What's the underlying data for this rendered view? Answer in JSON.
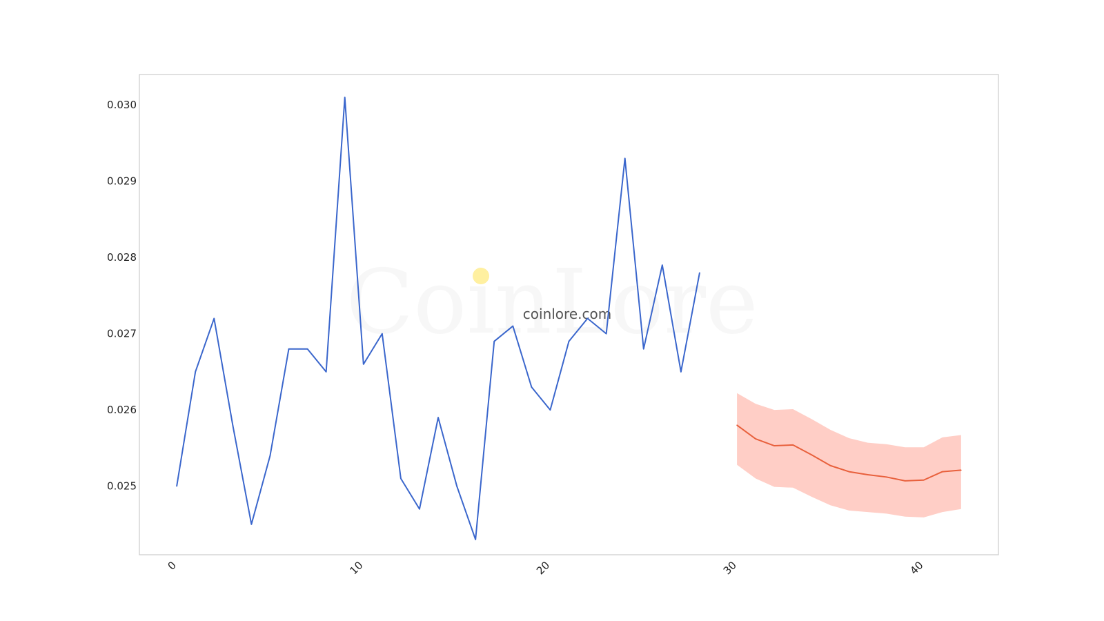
{
  "watermark": {
    "logo_text": "CoinLore",
    "site_text": "coinlore.com",
    "dot_color": "#fff0a0"
  },
  "chart_data": {
    "type": "line",
    "title": "",
    "xlabel": "",
    "ylabel": "",
    "xlim": [
      -2,
      44
    ],
    "ylim": [
      0.0241,
      0.0304
    ],
    "grid": false,
    "x_ticks": [
      0,
      10,
      20,
      30,
      40
    ],
    "y_ticks": [
      0.025,
      0.026,
      0.027,
      0.028,
      0.029,
      0.03
    ],
    "y_tick_labels": [
      "0.025",
      "0.026",
      "0.027",
      "0.028",
      "0.029",
      "0.030"
    ],
    "series": [
      {
        "color": "#3a66cc",
        "x": [
          0,
          1,
          2,
          3,
          4,
          5,
          6,
          7,
          8,
          9,
          10,
          11,
          12,
          13,
          14,
          15,
          16,
          17,
          18,
          19,
          20,
          21,
          22,
          23,
          24,
          25,
          26,
          27,
          28
        ],
        "values": [
          0.025,
          0.0265,
          0.0272,
          0.0258,
          0.0245,
          0.0254,
          0.0268,
          0.0268,
          0.0265,
          0.0301,
          0.0266,
          0.027,
          0.0251,
          0.0247,
          0.0259,
          0.025,
          0.0243,
          0.0269,
          0.0271,
          0.0263,
          0.026,
          0.0269,
          0.0272,
          0.027,
          0.0293,
          0.0268,
          0.0279,
          0.0265,
          0.0278
        ]
      },
      {
        "color": "#e8603c",
        "band_color": "#ffb3a8",
        "x": [
          30,
          31,
          32,
          33,
          34,
          35,
          36,
          37,
          38,
          39,
          40,
          41,
          42
        ],
        "values": [
          0.0258,
          0.02562,
          0.02553,
          0.02554,
          0.02541,
          0.02527,
          0.02519,
          0.02515,
          0.02512,
          0.02507,
          0.02508,
          0.02519,
          0.02521
        ],
        "upper": [
          0.02622,
          0.02608,
          0.026,
          0.02601,
          0.02588,
          0.02574,
          0.02563,
          0.02557,
          0.02555,
          0.02551,
          0.02551,
          0.02564,
          0.02567
        ],
        "lower": [
          0.02528,
          0.0251,
          0.02499,
          0.02498,
          0.02486,
          0.02475,
          0.02468,
          0.02466,
          0.02464,
          0.0246,
          0.02459,
          0.02466,
          0.0247
        ]
      }
    ]
  }
}
